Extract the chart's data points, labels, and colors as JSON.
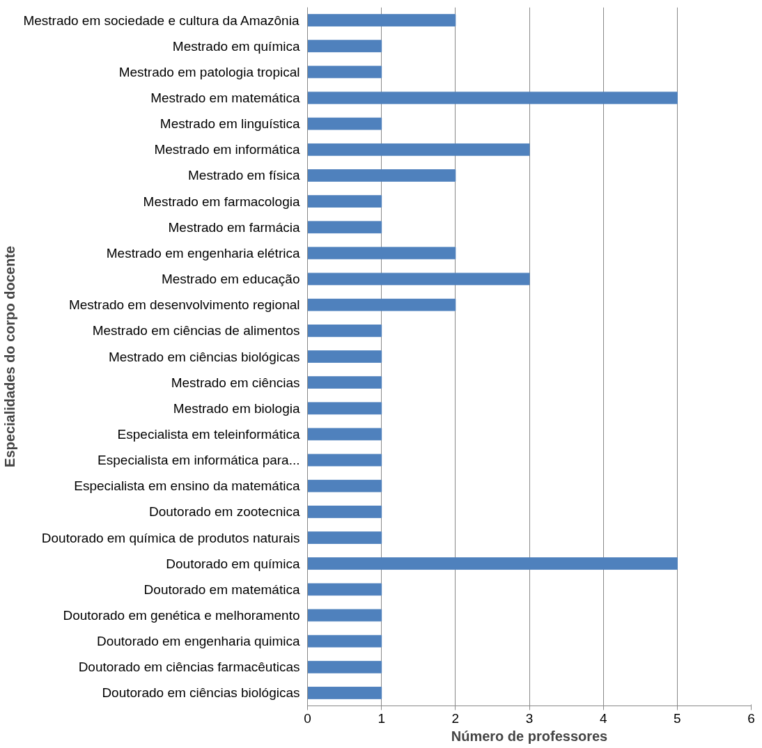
{
  "chart_data": {
    "type": "bar",
    "orientation": "horizontal",
    "xlabel": "Número de professores",
    "ylabel": "Especialidades do corpo docente",
    "categories": [
      "Mestrado em sociedade e cultura da Amazônia",
      "Mestrado em química",
      "Mestrado em patologia tropical",
      "Mestrado em matemática",
      "Mestrado em linguística",
      "Mestrado em informática",
      "Mestrado em física",
      "Mestrado em farmacologia",
      "Mestrado em farmácia",
      "Mestrado em engenharia elétrica",
      "Mestrado em educação",
      "Mestrado em desenvolvimento regional",
      "Mestrado em ciências de alimentos",
      "Mestrado em ciências biológicas",
      "Mestrado em ciências",
      "Mestrado em biologia",
      "Especialista em teleinformática",
      "Especialista em informática para...",
      "Especialista em ensino da matemática",
      "Doutorado em zootecnica",
      "Doutorado em química de produtos naturais",
      "Doutorado em química",
      "Doutorado em matemática",
      "Doutorado em genética e melhoramento",
      "Doutorado em engenharia quimica",
      "Doutorado em ciências farmacêuticas",
      "Doutorado em ciências biológicas"
    ],
    "values": [
      2,
      1,
      1,
      5,
      1,
      3,
      2,
      1,
      1,
      2,
      3,
      2,
      1,
      1,
      1,
      1,
      1,
      1,
      1,
      1,
      1,
      5,
      1,
      1,
      1,
      1,
      1
    ],
    "color": "#4f81bd",
    "xlim": [
      0,
      6
    ],
    "xticks": [
      0,
      1,
      2,
      3,
      4,
      5,
      6
    ],
    "grid": "x"
  }
}
